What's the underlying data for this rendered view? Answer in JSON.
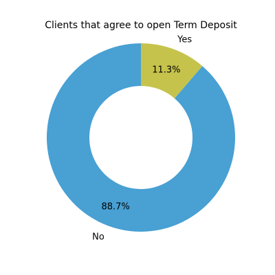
{
  "chart_data": {
    "type": "pie",
    "title": "Clients that agree to open Term Deposit",
    "slices": [
      {
        "label": "No",
        "value": 88.7,
        "pct_label": "88.7%",
        "color": "#48a0d3"
      },
      {
        "label": "Yes",
        "value": 11.3,
        "pct_label": "11.3%",
        "color": "#c5c34c"
      }
    ],
    "donut": true,
    "start_angle_deg": 90,
    "direction": "counterclockwise"
  }
}
